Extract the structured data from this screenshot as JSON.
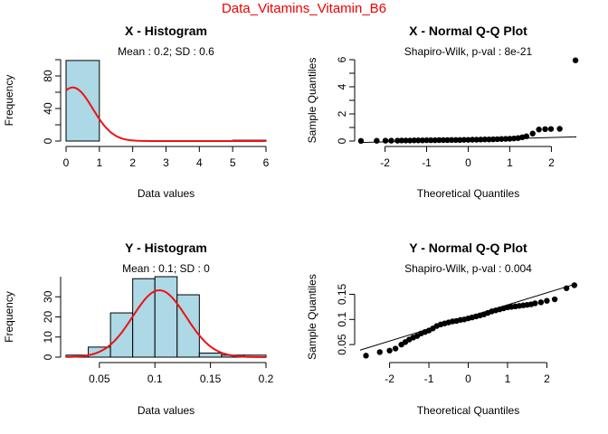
{
  "figure_title": "Data_Vitamins_Vitamin_B6",
  "colors": {
    "title": "#ee0000",
    "bar_fill": "#add8e6",
    "curve": "#ee1111",
    "points": "#000000"
  },
  "chart_data": [
    {
      "id": "x-hist",
      "type": "bar",
      "title": "X - Histogram",
      "subtitle": "Mean : 0.2; SD : 0.6",
      "xlabel": "Data values",
      "ylabel": "Frequency",
      "xlim": [
        0,
        6
      ],
      "ylim": [
        0,
        100
      ],
      "xticks": [
        0,
        1,
        2,
        3,
        4,
        5,
        6
      ],
      "yticks": [
        0,
        40,
        80
      ],
      "bins": [
        {
          "x0": 0,
          "x1": 1,
          "count": 99
        },
        {
          "x0": 5,
          "x1": 6,
          "count": 1
        }
      ],
      "density_curve": {
        "mean": 0.2,
        "sd": 0.6,
        "scale": 99
      }
    },
    {
      "id": "x-qq",
      "type": "scatter",
      "title": "X - Normal Q-Q Plot",
      "subtitle": "Shapiro-Wilk, p-val : 8e-21",
      "xlabel": "Theoretical Quantiles",
      "ylabel": "Sample Quantiles",
      "xlim": [
        -2.6,
        2.6
      ],
      "ylim": [
        0,
        6
      ],
      "xticks": [
        -2,
        -1,
        0,
        1,
        2
      ],
      "yticks": [
        0,
        2,
        4,
        6
      ],
      "ref_line": {
        "intercept": 0.1,
        "slope": 0.08
      },
      "points": [
        [
          -2.58,
          0.01
        ],
        [
          -2.2,
          0.02
        ],
        [
          -1.99,
          0.03
        ],
        [
          -1.85,
          0.03
        ],
        [
          -1.7,
          0.03
        ],
        [
          -1.6,
          0.04
        ],
        [
          -1.5,
          0.04
        ],
        [
          -1.4,
          0.04
        ],
        [
          -1.3,
          0.05
        ],
        [
          -1.2,
          0.05
        ],
        [
          -1.1,
          0.05
        ],
        [
          -1.0,
          0.06
        ],
        [
          -0.9,
          0.06
        ],
        [
          -0.8,
          0.06
        ],
        [
          -0.7,
          0.07
        ],
        [
          -0.6,
          0.07
        ],
        [
          -0.5,
          0.07
        ],
        [
          -0.4,
          0.08
        ],
        [
          -0.3,
          0.08
        ],
        [
          -0.2,
          0.08
        ],
        [
          -0.1,
          0.09
        ],
        [
          0.0,
          0.09
        ],
        [
          0.1,
          0.1
        ],
        [
          0.2,
          0.1
        ],
        [
          0.3,
          0.11
        ],
        [
          0.4,
          0.12
        ],
        [
          0.5,
          0.12
        ],
        [
          0.6,
          0.13
        ],
        [
          0.7,
          0.14
        ],
        [
          0.8,
          0.15
        ],
        [
          0.9,
          0.16
        ],
        [
          1.0,
          0.17
        ],
        [
          1.1,
          0.19
        ],
        [
          1.2,
          0.22
        ],
        [
          1.3,
          0.28
        ],
        [
          1.4,
          0.35
        ],
        [
          1.55,
          0.55
        ],
        [
          1.7,
          0.85
        ],
        [
          1.85,
          0.88
        ],
        [
          1.99,
          0.89
        ],
        [
          2.2,
          0.9
        ],
        [
          2.58,
          5.95
        ]
      ]
    },
    {
      "id": "y-hist",
      "type": "bar",
      "title": "Y - Histogram",
      "subtitle": "Mean : 0.1; SD : 0",
      "xlabel": "Data values",
      "ylabel": "Frequency",
      "xlim": [
        0.02,
        0.2
      ],
      "ylim": [
        0,
        40
      ],
      "xticks": [
        0.05,
        0.1,
        0.15,
        0.2
      ],
      "yticks": [
        0,
        10,
        20,
        30
      ],
      "bins": [
        {
          "x0": 0.02,
          "x1": 0.04,
          "count": 1
        },
        {
          "x0": 0.04,
          "x1": 0.06,
          "count": 5
        },
        {
          "x0": 0.06,
          "x1": 0.08,
          "count": 22
        },
        {
          "x0": 0.08,
          "x1": 0.1,
          "count": 39
        },
        {
          "x0": 0.1,
          "x1": 0.12,
          "count": 40
        },
        {
          "x0": 0.12,
          "x1": 0.14,
          "count": 31
        },
        {
          "x0": 0.14,
          "x1": 0.16,
          "count": 2
        },
        {
          "x0": 0.16,
          "x1": 0.18,
          "count": 1
        },
        {
          "x0": 0.18,
          "x1": 0.2,
          "count": 1
        }
      ],
      "density_curve": {
        "mean": 0.104,
        "sd": 0.024,
        "scale": 2.4
      }
    },
    {
      "id": "y-qq",
      "type": "scatter",
      "title": "Y - Normal Q-Q Plot",
      "subtitle": "Shapiro-Wilk, p-val : 0.004",
      "xlabel": "Theoretical Quantiles",
      "ylabel": "Sample Quantiles",
      "xlim": [
        -2.75,
        2.75
      ],
      "ylim": [
        0.025,
        0.185
      ],
      "xticks": [
        -2,
        -1,
        0,
        1,
        2
      ],
      "yticks": [
        0.05,
        0.1,
        0.15
      ],
      "ref_line": {
        "intercept": 0.105,
        "slope": 0.024
      },
      "points": [
        [
          -2.6,
          0.028
        ],
        [
          -2.25,
          0.035
        ],
        [
          -2.0,
          0.038
        ],
        [
          -1.85,
          0.042
        ],
        [
          -1.7,
          0.05
        ],
        [
          -1.6,
          0.055
        ],
        [
          -1.5,
          0.06
        ],
        [
          -1.4,
          0.064
        ],
        [
          -1.3,
          0.067
        ],
        [
          -1.2,
          0.072
        ],
        [
          -1.1,
          0.075
        ],
        [
          -1.0,
          0.078
        ],
        [
          -0.9,
          0.082
        ],
        [
          -0.8,
          0.087
        ],
        [
          -0.7,
          0.09
        ],
        [
          -0.6,
          0.092
        ],
        [
          -0.5,
          0.094
        ],
        [
          -0.4,
          0.096
        ],
        [
          -0.3,
          0.097
        ],
        [
          -0.2,
          0.099
        ],
        [
          -0.1,
          0.1
        ],
        [
          0.0,
          0.102
        ],
        [
          0.1,
          0.104
        ],
        [
          0.2,
          0.106
        ],
        [
          0.3,
          0.108
        ],
        [
          0.4,
          0.11
        ],
        [
          0.5,
          0.113
        ],
        [
          0.6,
          0.116
        ],
        [
          0.7,
          0.118
        ],
        [
          0.8,
          0.12
        ],
        [
          0.9,
          0.122
        ],
        [
          1.0,
          0.124
        ],
        [
          1.1,
          0.125
        ],
        [
          1.2,
          0.126
        ],
        [
          1.3,
          0.127
        ],
        [
          1.4,
          0.128
        ],
        [
          1.5,
          0.129
        ],
        [
          1.6,
          0.13
        ],
        [
          1.7,
          0.132
        ],
        [
          1.85,
          0.134
        ],
        [
          2.0,
          0.137
        ],
        [
          2.2,
          0.14
        ],
        [
          2.5,
          0.162
        ],
        [
          2.7,
          0.168
        ]
      ]
    }
  ]
}
